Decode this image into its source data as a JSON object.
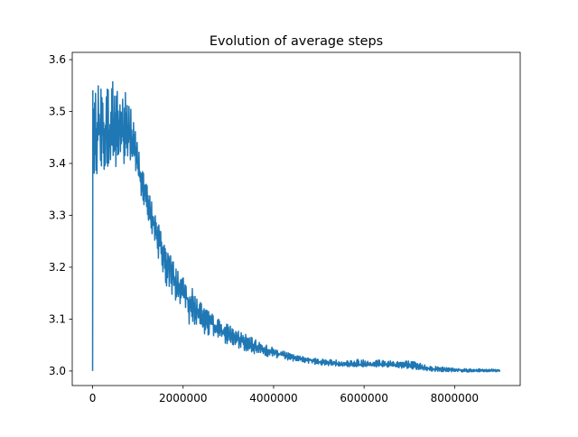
{
  "chart_data": {
    "type": "line",
    "title": "Evolution of average steps",
    "xlabel": "",
    "ylabel": "",
    "xlim": [
      -450000,
      9450000
    ],
    "ylim": [
      2.972,
      3.614
    ],
    "xticks": [
      0,
      2000000,
      4000000,
      6000000,
      8000000
    ],
    "xtick_labels": [
      "0",
      "2000000",
      "4000000",
      "6000000",
      "8000000"
    ],
    "yticks": [
      3.0,
      3.1,
      3.2,
      3.3,
      3.4,
      3.5,
      3.6
    ],
    "ytick_labels": [
      "3.0",
      "3.1",
      "3.2",
      "3.3",
      "3.4",
      "3.5",
      "3.6"
    ],
    "grid": false,
    "legend": "none",
    "series": [
      {
        "color": "#1f77b4",
        "x": [
          0,
          5000,
          100000,
          200000,
          300000,
          400000,
          500000,
          600000,
          700000,
          800000,
          900000,
          1000000,
          1200000,
          1400000,
          1600000,
          1800000,
          2000000,
          2200000,
          2500000,
          2800000,
          3000000,
          3500000,
          4000000,
          4500000,
          5000000,
          5500000,
          6000000,
          6500000,
          7000000,
          7500000,
          8000000,
          8500000,
          9000000
        ],
        "y": [
          3.0,
          3.46,
          3.46,
          3.46,
          3.46,
          3.46,
          3.46,
          3.46,
          3.455,
          3.45,
          3.43,
          3.4,
          3.33,
          3.27,
          3.22,
          3.18,
          3.15,
          3.125,
          3.1,
          3.08,
          3.07,
          3.05,
          3.035,
          3.025,
          3.018,
          3.013,
          3.012,
          3.012,
          3.01,
          3.004,
          3.002,
          3.001,
          3.001
        ],
        "band_low": [
          3.0,
          3.38,
          3.38,
          3.38,
          3.38,
          3.38,
          3.38,
          3.39,
          3.39,
          3.4,
          3.39,
          3.36,
          3.3,
          3.23,
          3.17,
          3.13,
          3.1,
          3.085,
          3.07,
          3.06,
          3.05,
          3.035,
          3.025,
          3.018,
          3.012,
          3.008,
          3.008,
          3.007,
          3.004,
          2.999,
          2.998,
          2.998,
          2.999
        ],
        "band_high": [
          3.0,
          3.54,
          3.55,
          3.55,
          3.555,
          3.56,
          3.585,
          3.55,
          3.54,
          3.55,
          3.49,
          3.44,
          3.36,
          3.3,
          3.25,
          3.21,
          3.18,
          3.16,
          3.12,
          3.1,
          3.09,
          3.065,
          3.045,
          3.03,
          3.024,
          3.021,
          3.024,
          3.022,
          3.02,
          3.01,
          3.006,
          3.004,
          3.004
        ]
      }
    ]
  }
}
